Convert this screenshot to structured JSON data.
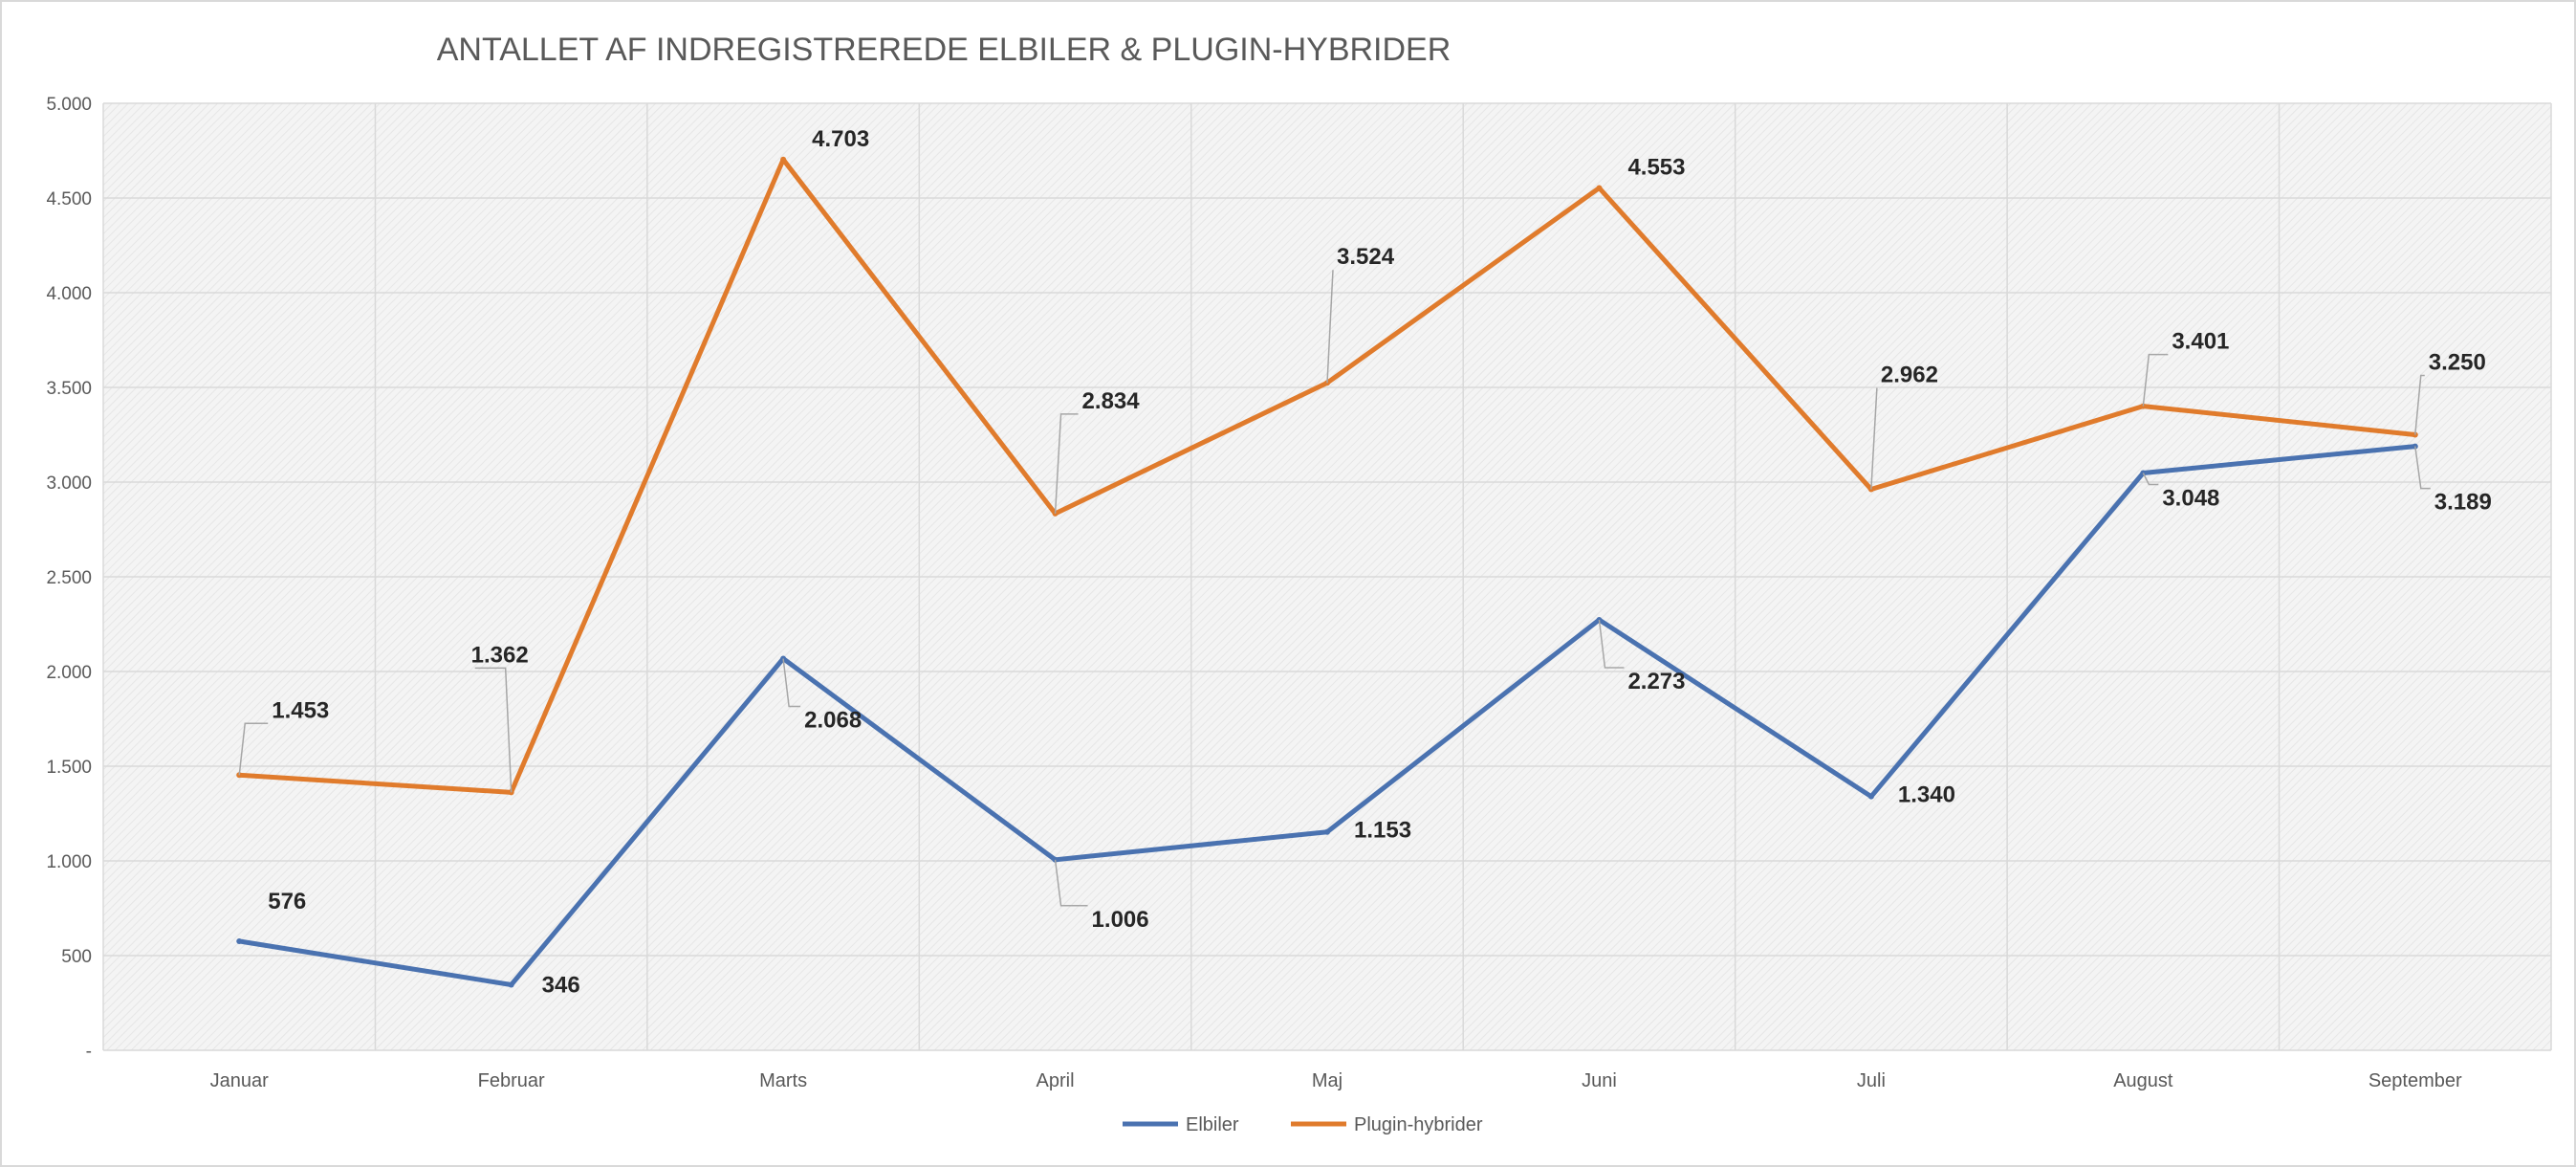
{
  "chart_data": {
    "type": "line",
    "title": "ANTALLET AF INDREGISTREREDE ELBILER & PLUGIN-HYBRIDER",
    "xlabel": "",
    "ylabel": "",
    "categories": [
      "Januar",
      "Februar",
      "Marts",
      "April",
      "Maj",
      "Juni",
      "Juli",
      "August",
      "September"
    ],
    "ylim": [
      0,
      5000
    ],
    "yticks": [
      0,
      500,
      1000,
      1500,
      2000,
      2500,
      3000,
      3500,
      4000,
      4500,
      5000
    ],
    "ytick_labels": [
      "-",
      "500",
      "1.000",
      "1.500",
      "2.000",
      "2.500",
      "3.000",
      "3.500",
      "4.000",
      "4.500",
      "5.000"
    ],
    "grid": true,
    "legend_position": "bottom",
    "series": [
      {
        "name": "Elbiler",
        "color": "#4a72b0",
        "values": [
          576,
          346,
          2068,
          1006,
          1153,
          2273,
          1340,
          3048,
          3189
        ],
        "labels": [
          "576",
          "346",
          "2.068",
          "1.006",
          "1.153",
          "2.273",
          "1.340",
          "3.048",
          "3.189"
        ]
      },
      {
        "name": "Plugin-hybrider",
        "color": "#e07b2c",
        "values": [
          1453,
          1362,
          4703,
          2834,
          3524,
          4553,
          2962,
          3401,
          3250
        ],
        "labels": [
          "1.453",
          "1.362",
          "4.703",
          "2.834",
          "3.524",
          "4.553",
          "2.962",
          "3.401",
          "3.250"
        ]
      }
    ]
  }
}
